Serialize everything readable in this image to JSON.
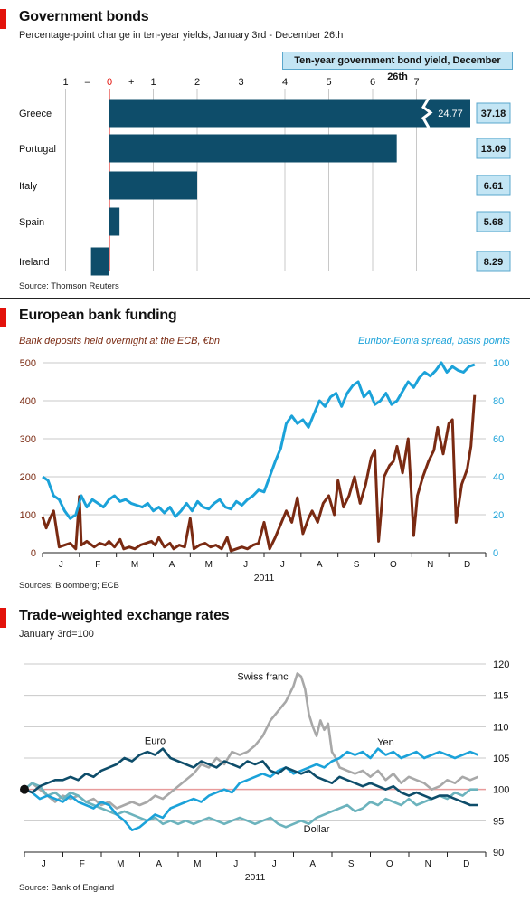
{
  "colors": {
    "accent_red": "#e3120b",
    "bar": "#0e4d6a",
    "dark_blue": "#0e4d6a",
    "cyan": "#1ba2d9",
    "brown": "#7a2a12",
    "grey": "#a8a8a8",
    "teal": "#6cb3bd",
    "pink_baseline": "#e89b9b",
    "box_fill": "#c3e5f4"
  },
  "panel1": {
    "title": "Government bonds",
    "subtitle": "Percentage-point change in ten-year yields, January 3rd - December 26th",
    "legend_box": "Ten-year government bond yield, December 26th",
    "source": "Source: Thomson Reuters"
  },
  "panel2": {
    "title": "European bank funding",
    "left_axis_label": "Bank deposits held overnight at the ECB, €bn",
    "right_axis_label": "Euribor-Eonia spread, basis points",
    "year": "2011",
    "source": "Sources: Bloomberg; ECB"
  },
  "panel3": {
    "title": "Trade-weighted exchange rates",
    "subtitle": "January 3rd=100",
    "year": "2011",
    "source": "Source: Bank of England"
  },
  "chart_data": [
    {
      "type": "bar",
      "orientation": "horizontal",
      "title": "Government bonds",
      "subtitle": "Percentage-point change in ten-year yields, January 3rd - December 26th",
      "xlim": [
        -1,
        7
      ],
      "xticks": [
        {
          "value": -1,
          "label": "1"
        },
        {
          "value": -0.5,
          "label": "–"
        },
        {
          "value": 0,
          "label": "0"
        },
        {
          "value": 0.5,
          "label": "+"
        },
        {
          "value": 1,
          "label": "1"
        },
        {
          "value": 2,
          "label": "2"
        },
        {
          "value": 3,
          "label": "3"
        },
        {
          "value": 4,
          "label": "4"
        },
        {
          "value": 5,
          "label": "5"
        },
        {
          "value": 6,
          "label": "6"
        },
        {
          "value": 7,
          "label": "7"
        }
      ],
      "categories": [
        "Greece",
        "Portugal",
        "Italy",
        "Spain",
        "Ireland"
      ],
      "values": [
        24.77,
        6.55,
        2.0,
        0.23,
        -0.42
      ],
      "value_labels": [
        "24.77",
        "",
        "",
        "",
        ""
      ],
      "truncated": [
        true,
        false,
        false,
        false,
        false
      ],
      "yield_dec26": [
        "37.18",
        "13.09",
        "6.61",
        "5.68",
        "8.29"
      ],
      "yield_label": "Ten-year government bond yield, December 26th",
      "grid": true
    },
    {
      "type": "line",
      "title": "European bank funding",
      "x_months": [
        "J",
        "F",
        "M",
        "A",
        "M",
        "J",
        "J",
        "A",
        "S",
        "O",
        "N",
        "D"
      ],
      "x_range": [
        0,
        12
      ],
      "xlabel": "2011",
      "y_left": {
        "label": "Bank deposits held overnight at the ECB, €bn",
        "lim": [
          0,
          500
        ],
        "ticks": [
          0,
          100,
          200,
          300,
          400,
          500
        ]
      },
      "y_right": {
        "label": "Euribor-Eonia spread, basis points",
        "lim": [
          0,
          100
        ],
        "ticks": [
          0,
          20,
          40,
          60,
          80,
          100
        ]
      },
      "series": [
        {
          "axis": "left",
          "color": "#7a2a12",
          "x": [
            0,
            0.1,
            0.2,
            0.3,
            0.45,
            0.6,
            0.75,
            0.9,
            1.0,
            1.05,
            1.2,
            1.4,
            1.55,
            1.7,
            1.8,
            1.95,
            2.1,
            2.2,
            2.35,
            2.5,
            2.65,
            2.8,
            2.95,
            3.05,
            3.15,
            3.3,
            3.45,
            3.55,
            3.7,
            3.85,
            4.0,
            4.1,
            4.25,
            4.4,
            4.55,
            4.7,
            4.85,
            5.0,
            5.1,
            5.25,
            5.4,
            5.55,
            5.7,
            5.85,
            6.0,
            6.15,
            6.3,
            6.45,
            6.6,
            6.75,
            6.9,
            7.05,
            7.2,
            7.3,
            7.45,
            7.6,
            7.75,
            7.9,
            8.0,
            8.15,
            8.3,
            8.45,
            8.6,
            8.75,
            8.9,
            9.0,
            9.1,
            9.25,
            9.4,
            9.5,
            9.6,
            9.75,
            9.9,
            10.05,
            10.15,
            10.3,
            10.45,
            10.6,
            10.7,
            10.85,
            11.0,
            11.1,
            11.2,
            11.35,
            11.5,
            11.6,
            11.7
          ],
          "y": [
            95,
            65,
            90,
            110,
            15,
            20,
            25,
            10,
            148,
            20,
            30,
            15,
            25,
            20,
            30,
            15,
            35,
            10,
            15,
            10,
            20,
            25,
            30,
            20,
            40,
            15,
            25,
            10,
            20,
            15,
            90,
            10,
            20,
            25,
            15,
            20,
            10,
            40,
            5,
            10,
            15,
            10,
            20,
            25,
            80,
            10,
            40,
            75,
            110,
            80,
            145,
            50,
            90,
            110,
            80,
            130,
            150,
            100,
            190,
            120,
            150,
            200,
            130,
            180,
            250,
            270,
            30,
            200,
            230,
            240,
            280,
            210,
            300,
            45,
            150,
            200,
            240,
            270,
            330,
            260,
            340,
            350,
            80,
            180,
            220,
            280,
            415
          ]
        },
        {
          "axis": "right",
          "color": "#1ba2d9",
          "x": [
            0,
            0.15,
            0.3,
            0.45,
            0.6,
            0.75,
            0.9,
            1.05,
            1.2,
            1.35,
            1.5,
            1.65,
            1.8,
            1.95,
            2.1,
            2.25,
            2.4,
            2.55,
            2.7,
            2.85,
            3.0,
            3.15,
            3.3,
            3.45,
            3.6,
            3.75,
            3.9,
            4.05,
            4.2,
            4.35,
            4.5,
            4.65,
            4.8,
            4.95,
            5.1,
            5.25,
            5.4,
            5.55,
            5.7,
            5.85,
            6.0,
            6.15,
            6.3,
            6.45,
            6.6,
            6.75,
            6.9,
            7.05,
            7.2,
            7.35,
            7.5,
            7.65,
            7.8,
            7.95,
            8.1,
            8.25,
            8.4,
            8.55,
            8.7,
            8.85,
            9.0,
            9.15,
            9.3,
            9.45,
            9.6,
            9.75,
            9.9,
            10.05,
            10.2,
            10.35,
            10.5,
            10.65,
            10.8,
            10.95,
            11.1,
            11.25,
            11.4,
            11.55,
            11.7
          ],
          "y": [
            40,
            38,
            30,
            28,
            22,
            18,
            20,
            30,
            24,
            28,
            26,
            24,
            28,
            30,
            27,
            28,
            26,
            25,
            24,
            26,
            22,
            24,
            21,
            24,
            19,
            22,
            26,
            22,
            27,
            24,
            23,
            26,
            28,
            24,
            23,
            27,
            25,
            28,
            30,
            33,
            32,
            40,
            48,
            55,
            68,
            72,
            68,
            70,
            66,
            73,
            80,
            77,
            82,
            84,
            77,
            84,
            88,
            90,
            82,
            85,
            78,
            80,
            84,
            78,
            80,
            85,
            90,
            87,
            92,
            95,
            93,
            96,
            100,
            95,
            98,
            96,
            95,
            98,
            99
          ]
        }
      ],
      "grid": true
    },
    {
      "type": "line",
      "title": "Trade-weighted exchange rates",
      "subtitle": "January 3rd=100",
      "x_months": [
        "J",
        "F",
        "M",
        "A",
        "M",
        "J",
        "J",
        "A",
        "S",
        "O",
        "N",
        "D"
      ],
      "x_range": [
        0,
        12
      ],
      "xlabel": "2011",
      "ylim": [
        90,
        120
      ],
      "yticks": [
        90,
        95,
        100,
        105,
        110,
        115,
        120
      ],
      "baseline": 100,
      "series": [
        {
          "name": "Swiss franc",
          "color": "#a8a8a8",
          "x": [
            0,
            0.2,
            0.4,
            0.6,
            0.8,
            1.0,
            1.2,
            1.4,
            1.6,
            1.8,
            2.0,
            2.2,
            2.4,
            2.6,
            2.8,
            3.0,
            3.2,
            3.4,
            3.6,
            3.8,
            4.0,
            4.2,
            4.4,
            4.6,
            4.8,
            5.0,
            5.2,
            5.4,
            5.6,
            5.8,
            6.0,
            6.2,
            6.4,
            6.6,
            6.8,
            7.0,
            7.1,
            7.2,
            7.3,
            7.4,
            7.5,
            7.6,
            7.7,
            7.8,
            7.9,
            8.0,
            8.1,
            8.2,
            8.4,
            8.6,
            8.8,
            9.0,
            9.2,
            9.4,
            9.6,
            9.8,
            10.0,
            10.2,
            10.4,
            10.6,
            10.8,
            11.0,
            11.2,
            11.4,
            11.6,
            11.8
          ],
          "y": [
            100,
            101,
            100,
            99,
            98,
            99,
            98.5,
            99,
            98,
            98.5,
            97.5,
            98,
            97,
            97.5,
            98,
            97.5,
            98,
            99,
            98.5,
            99.5,
            100.5,
            101.5,
            102.5,
            104,
            103.5,
            105,
            104,
            106,
            105.5,
            106,
            107,
            108.5,
            111,
            112.5,
            114,
            116.5,
            118.5,
            118,
            116,
            112,
            110,
            108.5,
            111,
            109.5,
            110.5,
            106,
            105,
            103.5,
            103,
            102.5,
            103,
            102,
            103,
            101.5,
            102.5,
            101,
            102,
            101.5,
            101,
            100,
            100.5,
            101.5,
            101,
            102,
            101.5,
            102
          ]
        },
        {
          "name": "Euro",
          "color": "#0e4d6a",
          "x": [
            0,
            0.2,
            0.4,
            0.6,
            0.8,
            1.0,
            1.2,
            1.4,
            1.6,
            1.8,
            2.0,
            2.2,
            2.4,
            2.6,
            2.8,
            3.0,
            3.2,
            3.4,
            3.6,
            3.8,
            4.0,
            4.2,
            4.4,
            4.6,
            4.8,
            5.0,
            5.2,
            5.4,
            5.6,
            5.8,
            6.0,
            6.2,
            6.4,
            6.6,
            6.8,
            7.0,
            7.2,
            7.4,
            7.6,
            7.8,
            8.0,
            8.2,
            8.4,
            8.6,
            8.8,
            9.0,
            9.2,
            9.4,
            9.6,
            9.8,
            10.0,
            10.2,
            10.4,
            10.6,
            10.8,
            11.0,
            11.2,
            11.4,
            11.6,
            11.8
          ],
          "y": [
            100,
            99.5,
            100.5,
            101,
            101.5,
            101.5,
            102,
            101.5,
            102.5,
            102,
            103,
            103.5,
            104,
            105,
            104.5,
            105.5,
            106,
            105.5,
            106.5,
            105,
            104.5,
            104,
            103.5,
            104.5,
            104,
            103.5,
            104.5,
            104,
            103.5,
            104.5,
            104,
            104.5,
            103,
            102.5,
            103.5,
            103,
            102.5,
            103,
            102,
            101.5,
            101,
            102,
            101.5,
            101,
            100.5,
            101,
            100.5,
            100,
            100.5,
            99.5,
            99,
            99.5,
            99,
            98.5,
            99,
            99,
            98.5,
            98,
            97.5,
            97.5
          ]
        },
        {
          "name": "Yen",
          "color": "#1ba2d9",
          "x": [
            0,
            0.2,
            0.4,
            0.6,
            0.8,
            1.0,
            1.2,
            1.4,
            1.6,
            1.8,
            2.0,
            2.2,
            2.4,
            2.6,
            2.8,
            3.0,
            3.2,
            3.4,
            3.6,
            3.8,
            4.0,
            4.2,
            4.4,
            4.6,
            4.8,
            5.0,
            5.2,
            5.4,
            5.6,
            5.8,
            6.0,
            6.2,
            6.4,
            6.6,
            6.8,
            7.0,
            7.2,
            7.4,
            7.6,
            7.8,
            8.0,
            8.2,
            8.4,
            8.6,
            8.8,
            9.0,
            9.2,
            9.4,
            9.6,
            9.8,
            10.0,
            10.2,
            10.4,
            10.6,
            10.8,
            11.0,
            11.2,
            11.4,
            11.6,
            11.8
          ],
          "y": [
            100,
            99.5,
            98.5,
            99,
            98.5,
            98,
            99,
            98,
            97.5,
            97,
            98,
            97.5,
            96,
            95,
            93.5,
            94,
            95,
            96,
            95.5,
            97,
            97.5,
            98,
            98.5,
            98,
            99,
            99.5,
            100,
            99.5,
            101,
            101.5,
            102,
            102.5,
            102,
            103,
            103.5,
            102.5,
            103,
            103.5,
            104,
            103.5,
            104.5,
            105,
            106,
            105.5,
            106,
            105,
            106.5,
            105.5,
            106,
            105,
            105.5,
            106,
            105,
            105.5,
            106,
            105.5,
            105,
            105.5,
            106,
            105.5
          ]
        },
        {
          "name": "Dollar",
          "color": "#6cb3bd",
          "x": [
            0,
            0.2,
            0.4,
            0.6,
            0.8,
            1.0,
            1.2,
            1.4,
            1.6,
            1.8,
            2.0,
            2.2,
            2.4,
            2.6,
            2.8,
            3.0,
            3.2,
            3.4,
            3.6,
            3.8,
            4.0,
            4.2,
            4.4,
            4.6,
            4.8,
            5.0,
            5.2,
            5.4,
            5.6,
            5.8,
            6.0,
            6.2,
            6.4,
            6.6,
            6.8,
            7.0,
            7.2,
            7.4,
            7.6,
            7.8,
            8.0,
            8.2,
            8.4,
            8.6,
            8.8,
            9.0,
            9.2,
            9.4,
            9.6,
            9.8,
            10.0,
            10.2,
            10.4,
            10.6,
            10.8,
            11.0,
            11.2,
            11.4,
            11.6,
            11.8
          ],
          "y": [
            100,
            101,
            100.5,
            99,
            99.5,
            98.5,
            99.5,
            99,
            98,
            97.5,
            97,
            96.5,
            96,
            96.5,
            96,
            95.5,
            95,
            95.5,
            94.5,
            95,
            94.5,
            95,
            94.5,
            95,
            95.5,
            95,
            94.5,
            95,
            95.5,
            95,
            94.5,
            95,
            95.5,
            94.5,
            94,
            94.5,
            95,
            94.5,
            95.5,
            96,
            96.5,
            97,
            97.5,
            96.5,
            97,
            98,
            97.5,
            98.5,
            98,
            97.5,
            98.5,
            97.5,
            98,
            98.5,
            99,
            98.5,
            99.5,
            99,
            100,
            100
          ]
        }
      ],
      "annotations": [
        "Swiss franc",
        "Euro",
        "Yen",
        "Dollar"
      ],
      "grid": true
    }
  ]
}
